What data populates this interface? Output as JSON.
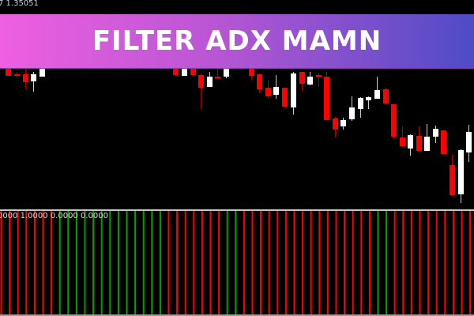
{
  "chart_header": {
    "price_text": "7 1.35051"
  },
  "banner": {
    "title": "FILTER ADX MAMN",
    "gradient_start": "#ee60e0",
    "gradient_end": "#4f4bc6"
  },
  "indicator": {
    "values_text": "0000 1.0000 0.0000 0.0000",
    "colors": {
      "up": "#00a000",
      "down": "#ff0000"
    },
    "bars": [
      "down",
      "down",
      "down",
      "down",
      "down",
      "down",
      "down",
      "up",
      "up",
      "up",
      "up",
      "up",
      "up",
      "up",
      "up",
      "up",
      "up",
      "up",
      "up",
      "up",
      "down",
      "down",
      "down",
      "down",
      "down",
      "down",
      "down",
      "up",
      "up",
      "down",
      "down",
      "down",
      "down",
      "down",
      "down",
      "down",
      "down",
      "down",
      "down",
      "down",
      "down",
      "down",
      "down",
      "down",
      "down",
      "up",
      "up",
      "down",
      "down",
      "down",
      "down",
      "down",
      "down",
      "down",
      "down",
      "down",
      "down"
    ]
  },
  "candle_colors": {
    "bull": "#ffffff",
    "bear": "#ff0000"
  }
}
